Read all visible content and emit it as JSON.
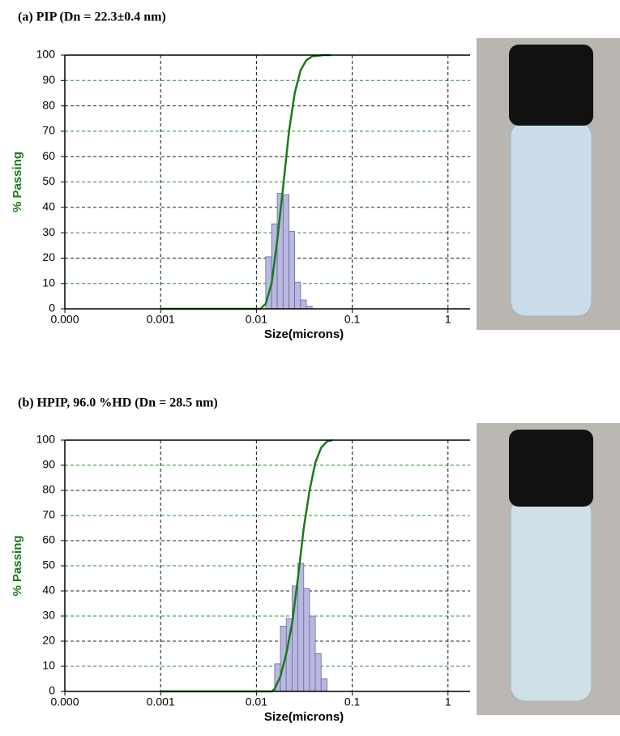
{
  "chart_data": [
    {
      "type": "histogram",
      "title": "(a) PIP (Dn = 22.3±0.4 nm)",
      "xlabel": "Size(microns)",
      "ylabel": "% Passing",
      "xscale": "log",
      "xlim": [
        0.0001,
        1.7
      ],
      "ylim": [
        0,
        100
      ],
      "xticks": [
        {
          "value": 0.0001,
          "label": "0.000"
        },
        0.001,
        0.01,
        0.1,
        1
      ],
      "yticks": [
        0,
        10,
        20,
        30,
        40,
        50,
        60,
        70,
        80,
        90,
        100
      ],
      "grid": true,
      "bins": [
        0.0125,
        0.0144,
        0.0165,
        0.019,
        0.0219,
        0.0251,
        0.0289,
        0.0332,
        0.0382
      ],
      "counts": [
        20.5,
        33.5,
        45.5,
        45,
        30.5,
        10.5,
        3.5,
        1
      ],
      "bar_color": "#b8b8e0",
      "cumulative": {
        "color": "#1a7a1a",
        "x": [
          0.001,
          0.011,
          0.0125,
          0.0144,
          0.0165,
          0.019,
          0.0219,
          0.0251,
          0.0289,
          0.0332,
          0.0382,
          0.05,
          0.06
        ],
        "values": [
          0,
          0,
          2,
          10,
          27,
          48,
          70,
          85,
          94,
          98,
          99.5,
          100,
          100
        ]
      }
    },
    {
      "type": "histogram",
      "title": "(b) HPIP, 96.0 %HD (Dn = 28.5 nm)",
      "xlabel": "Size(microns)",
      "ylabel": "% Passing",
      "xscale": "log",
      "xlim": [
        0.0001,
        1.7
      ],
      "ylim": [
        0,
        100
      ],
      "xticks": [
        {
          "value": 0.0001,
          "label": "0.000"
        },
        0.001,
        0.01,
        0.1,
        1
      ],
      "yticks": [
        0,
        10,
        20,
        30,
        40,
        50,
        60,
        70,
        80,
        90,
        100
      ],
      "grid": true,
      "bins": [
        0.0155,
        0.0178,
        0.0205,
        0.0236,
        0.0271,
        0.0312,
        0.0359,
        0.0412,
        0.0474,
        0.0546
      ],
      "counts": [
        11,
        26,
        29,
        42,
        51,
        41,
        30,
        15,
        5
      ],
      "bar_color": "#b8b8e0",
      "cumulative": {
        "color": "#1a7a1a",
        "x": [
          0.001,
          0.0145,
          0.0155,
          0.0178,
          0.0205,
          0.0236,
          0.0271,
          0.0312,
          0.0359,
          0.0412,
          0.0474,
          0.0546,
          0.062
        ],
        "values": [
          0,
          0,
          1,
          6,
          15,
          27,
          45,
          65,
          80,
          91,
          97,
          99.5,
          100
        ]
      }
    }
  ]
}
